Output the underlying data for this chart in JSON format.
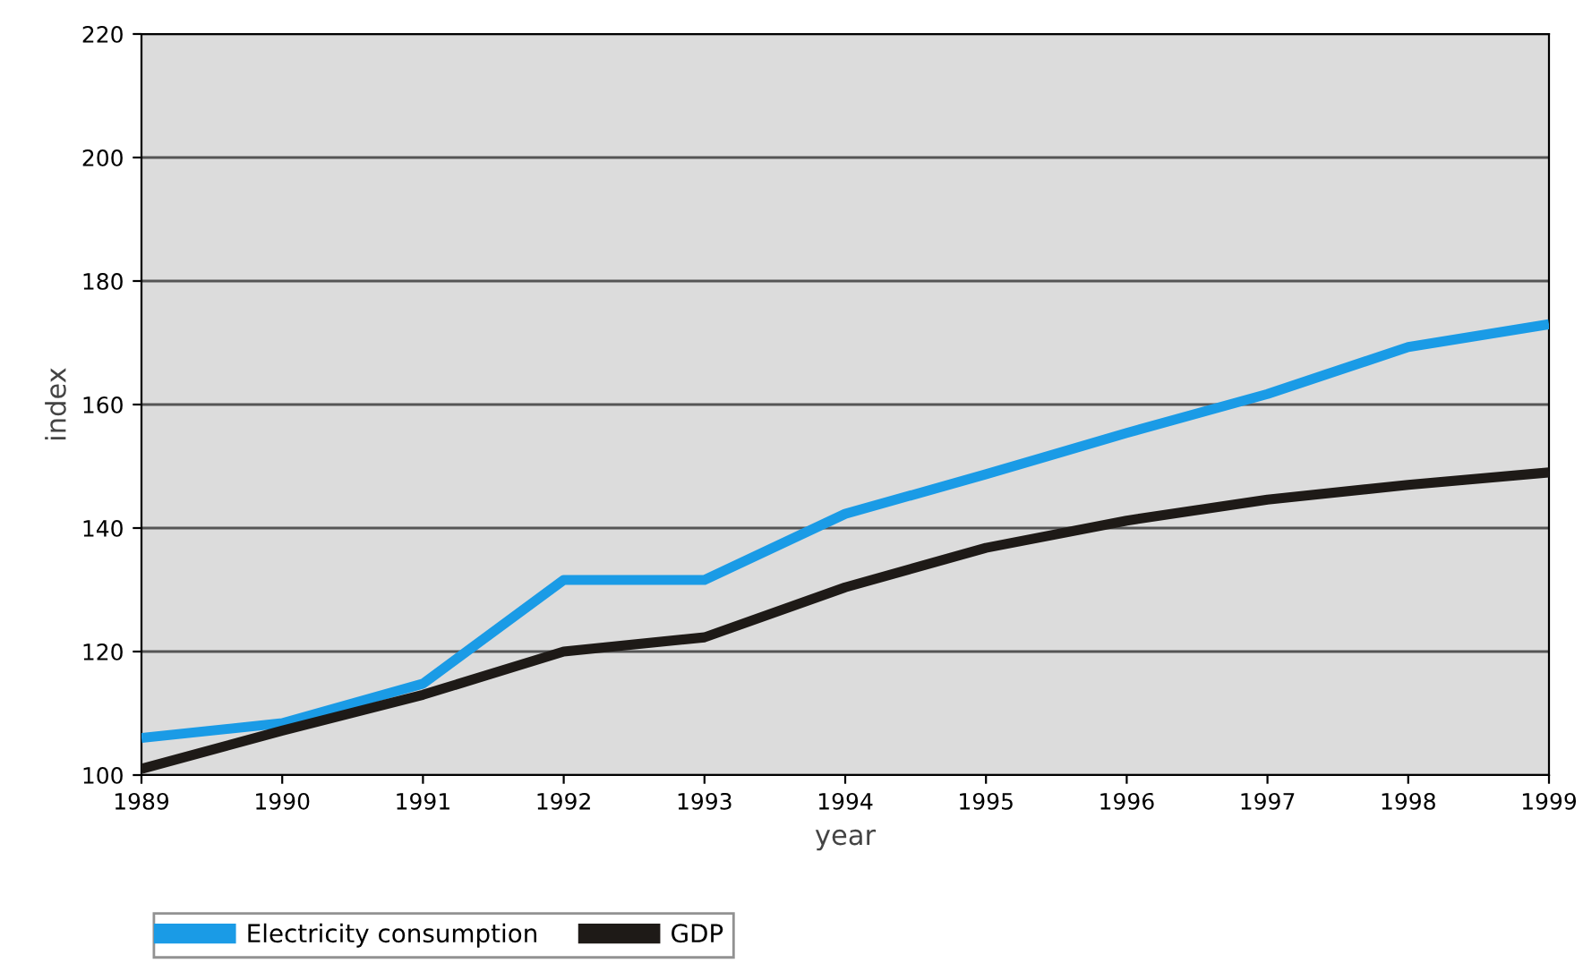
{
  "chart_data": {
    "type": "line",
    "xlabel": "year",
    "ylabel": "index",
    "x": [
      1989,
      1990,
      1991,
      1992,
      1993,
      1994,
      1995,
      1996,
      1997,
      1998,
      1999
    ],
    "series": [
      {
        "name": "Electricity consumption",
        "color": "#1a9be6",
        "values": [
          106,
          108.4,
          114.8,
          131.6,
          131.6,
          142.3,
          148.7,
          155.4,
          161.7,
          169.3,
          173
        ]
      },
      {
        "name": "GDP",
        "color": "#1e1a17",
        "values": [
          101,
          107.2,
          113,
          120,
          122.3,
          130.4,
          136.8,
          141.2,
          144.6,
          147,
          149
        ]
      }
    ],
    "xlim": [
      1989,
      1999
    ],
    "xticks": [
      1989,
      1990,
      1991,
      1992,
      1993,
      1994,
      1995,
      1996,
      1997,
      1998,
      1999
    ],
    "ylim": [
      100,
      220
    ],
    "yticks": [
      100,
      120,
      140,
      160,
      180,
      200,
      220
    ],
    "grid": "y",
    "legend": "bottom",
    "marker": "none",
    "line_style": "solid"
  }
}
